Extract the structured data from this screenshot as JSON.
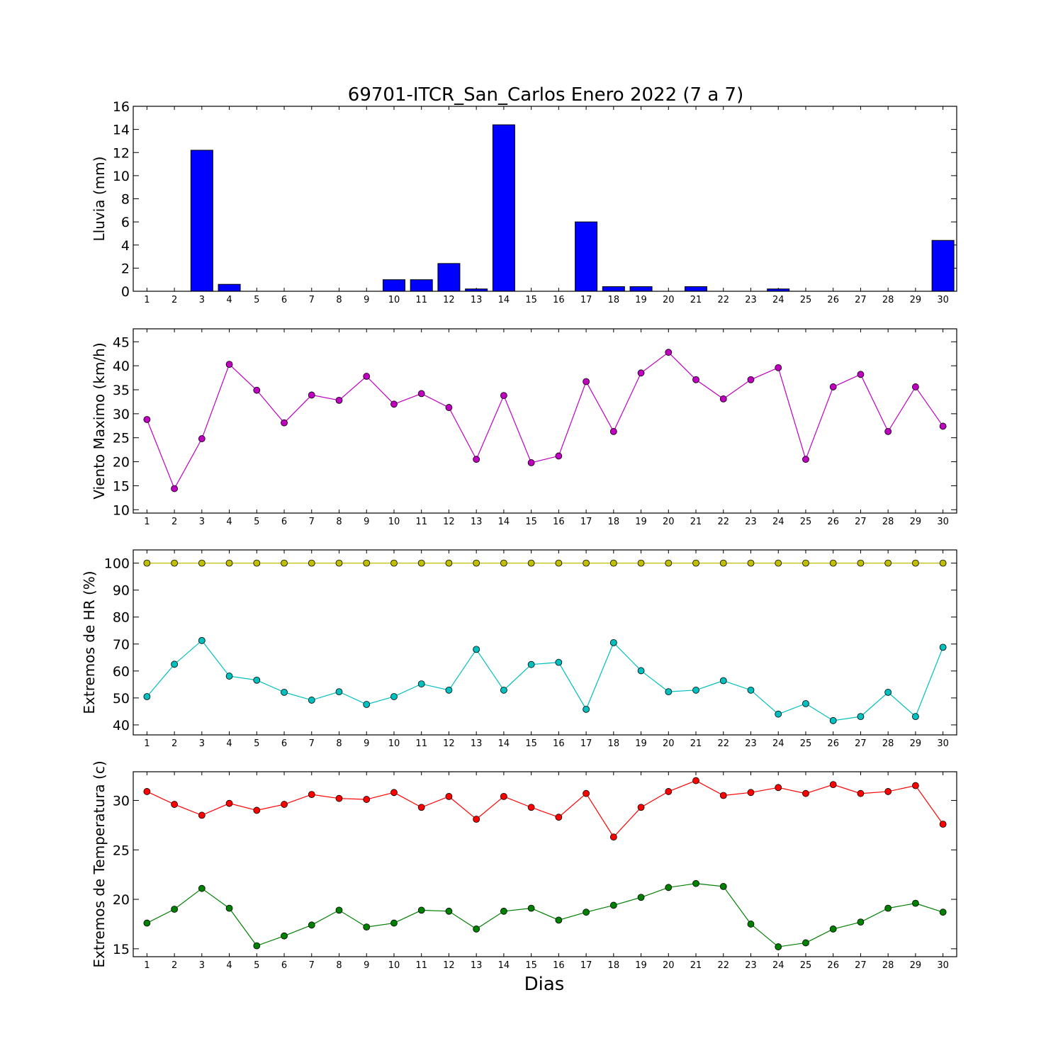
{
  "chart_data": {
    "type": "multi-panel",
    "title": "69701-ITCR_San_Carlos Enero 2022  (7 a 7)",
    "xlabel": "Dias",
    "days": [
      1,
      2,
      3,
      4,
      5,
      6,
      7,
      8,
      9,
      10,
      11,
      12,
      13,
      14,
      15,
      16,
      17,
      18,
      19,
      20,
      21,
      22,
      23,
      24,
      25,
      26,
      27,
      28,
      29,
      30
    ],
    "panels": [
      {
        "type": "bar",
        "ylabel": "Lluvia (mm)",
        "ylim": [
          0,
          16
        ],
        "yticks": [
          0,
          2,
          4,
          6,
          8,
          10,
          12,
          14,
          16
        ],
        "series": [
          {
            "color": "#0000ff",
            "values": [
              0,
              0,
              12.2,
              0.6,
              0,
              0,
              0,
              0,
              0,
              1.0,
              1.0,
              2.4,
              0.2,
              14.4,
              0,
              0,
              6.0,
              0.4,
              0.4,
              0,
              0.4,
              0,
              0,
              0.2,
              0,
              0,
              0,
              0,
              0,
              4.4
            ]
          }
        ]
      },
      {
        "type": "line",
        "ylabel": "Viento Maximo (km/h)",
        "ylim": [
          9.3,
          47.7
        ],
        "yticks": [
          10,
          15,
          20,
          25,
          30,
          35,
          40,
          45
        ],
        "series": [
          {
            "color": "#bf00bf",
            "values": [
              28.8,
              14.4,
              24.8,
              40.3,
              34.9,
              28.1,
              33.9,
              32.8,
              37.8,
              32.0,
              34.2,
              31.3,
              20.5,
              33.8,
              19.8,
              21.2,
              36.7,
              26.3,
              38.5,
              42.8,
              37.1,
              33.1,
              37.1,
              39.6,
              20.5,
              35.6,
              38.2,
              26.3,
              35.6,
              27.4
            ]
          }
        ]
      },
      {
        "type": "line",
        "ylabel": "Extremos de HR (%)",
        "ylim": [
          36.3,
          104.9
        ],
        "yticks": [
          40,
          50,
          60,
          70,
          80,
          90,
          100
        ],
        "series": [
          {
            "color": "#bfbf00",
            "values": [
              100,
              100,
              100,
              100,
              100,
              100,
              100,
              100,
              100,
              100,
              100,
              100,
              100,
              100,
              100,
              100,
              100,
              100,
              100,
              100,
              100,
              100,
              100,
              100,
              100,
              100,
              100,
              100,
              100,
              100
            ]
          },
          {
            "color": "#00bfbf",
            "values": [
              50.5,
              62.5,
              71.3,
              58.1,
              56.6,
              52.1,
              49.2,
              52.3,
              47.6,
              50.5,
              55.2,
              52.9,
              68.0,
              52.9,
              62.4,
              63.2,
              45.8,
              70.5,
              60.1,
              52.3,
              52.9,
              56.4,
              52.9,
              44.0,
              47.9,
              41.6,
              43.1,
              52.1,
              43.1,
              68.8
            ]
          }
        ]
      },
      {
        "type": "line",
        "ylabel": "Extremos de Temperatura (c)",
        "ylim": [
          14.2,
          32.9
        ],
        "yticks": [
          15,
          20,
          25,
          30
        ],
        "series": [
          {
            "color": "#ff0000",
            "values": [
              30.9,
              29.6,
              28.5,
              29.7,
              29.0,
              29.6,
              30.6,
              30.2,
              30.1,
              30.8,
              29.3,
              30.4,
              28.1,
              30.4,
              29.3,
              28.3,
              30.7,
              26.3,
              29.3,
              30.9,
              32.0,
              30.5,
              30.8,
              31.3,
              30.7,
              31.6,
              30.7,
              30.9,
              31.5,
              27.6
            ]
          },
          {
            "color": "#008000",
            "values": [
              17.6,
              19.0,
              21.1,
              19.1,
              15.3,
              16.3,
              17.4,
              18.9,
              17.2,
              17.6,
              18.9,
              18.8,
              17.0,
              18.8,
              19.1,
              17.9,
              18.7,
              19.4,
              20.2,
              21.2,
              21.6,
              21.3,
              17.5,
              15.2,
              15.6,
              17.0,
              17.7,
              19.1,
              19.6,
              18.7
            ]
          }
        ]
      }
    ]
  }
}
